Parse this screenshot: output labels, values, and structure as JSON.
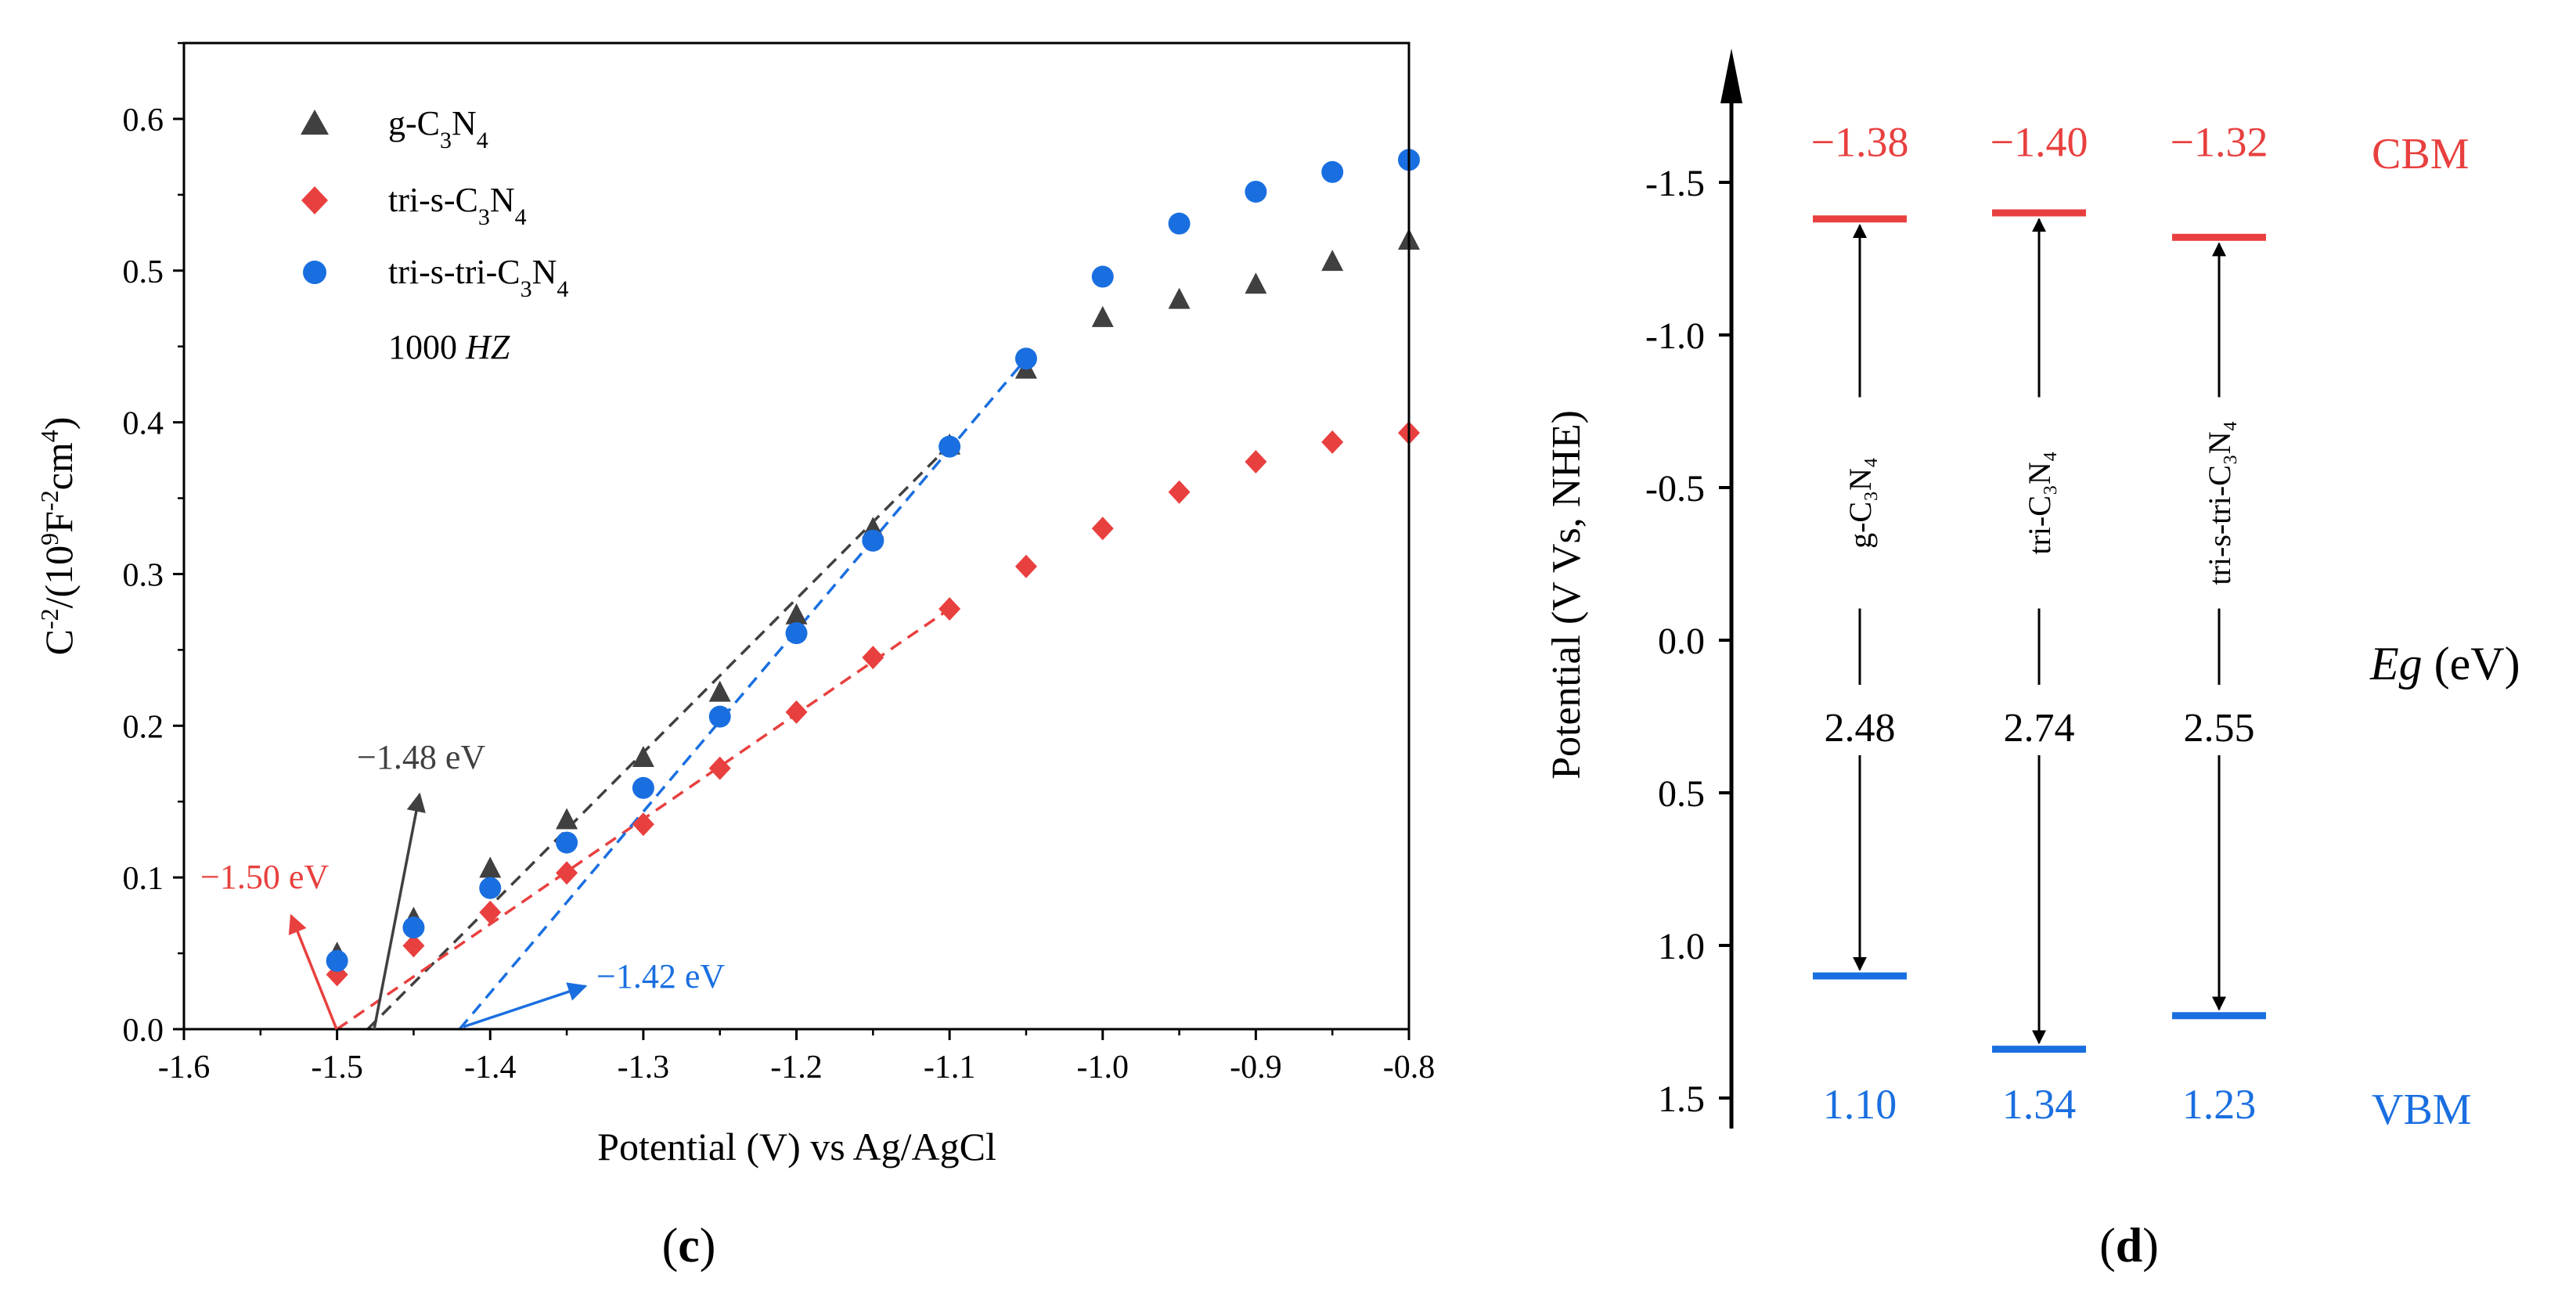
{
  "colors": {
    "gc3n4": "#404040",
    "tri_s": "#e8403f",
    "tri_s_tri": "#1a6fe0",
    "axis": "#000000",
    "cbm": "#e8403f",
    "vbm": "#1a6fe0"
  },
  "panel_c": {
    "caption": "(c)",
    "xlabel": "Potential (V) vs Ag/AgCl",
    "ylabel": "C⁻²/(10⁹F⁻²cm⁴)",
    "legend_title_extra": "1000 HZ",
    "legend": [
      {
        "label": "g-C₃N₄",
        "marker": "triangle",
        "color_key": "gc3n4"
      },
      {
        "label": "tri-s-C₃N₄",
        "marker": "diamond",
        "color_key": "tri_s"
      },
      {
        "label": "tri-s-tri-C₃N₄",
        "marker": "circle",
        "color_key": "tri_s_tri"
      }
    ],
    "annotations": [
      {
        "text": "−1.48 eV",
        "color_key": "gc3n4"
      },
      {
        "text": "−1.50 eV",
        "color_key": "tri_s"
      },
      {
        "text": "−1.42 eV",
        "color_key": "tri_s_tri"
      }
    ]
  },
  "panel_d": {
    "caption": "(d)",
    "ylabel": "Potential (V Vs, NHE)",
    "eg_label": "Eg",
    "eg_unit": " (eV)",
    "cbm_label": "CBM",
    "vbm_label": "VBM",
    "columns": [
      {
        "name": "g-C₃N₄",
        "cbm": "−1.38",
        "vbm": "1.10",
        "gap": "2.48"
      },
      {
        "name": "tri-C₃N₄",
        "cbm": "−1.40",
        "vbm": "1.34",
        "gap": "2.74"
      },
      {
        "name": "tri-s-tri-C₃N₄",
        "cbm": "−1.32",
        "vbm": "1.23",
        "gap": "2.55"
      }
    ]
  },
  "chart_data": [
    {
      "type": "scatter",
      "xlabel": "Potential (V) vs Ag/AgCl",
      "ylabel": "C⁻²/(10⁹F⁻²cm⁴)",
      "xlim": [
        -1.6,
        -0.8
      ],
      "ylim": [
        0,
        0.65
      ],
      "xticks": [
        -1.6,
        -1.5,
        -1.4,
        -1.3,
        -1.2,
        -1.1,
        -1.0,
        -0.9,
        -0.8
      ],
      "yticks": [
        0.0,
        0.1,
        0.2,
        0.3,
        0.4,
        0.5,
        0.6
      ],
      "grid": false,
      "legend_position": "top-left",
      "x": [
        -1.5,
        -1.45,
        -1.4,
        -1.35,
        -1.3,
        -1.25,
        -1.2,
        -1.15,
        -1.1,
        -1.05,
        -1.0,
        -0.95,
        -0.9,
        -0.85,
        -0.8
      ],
      "series": [
        {
          "name": "g-C₃N₄",
          "values": [
            0.05,
            0.073,
            0.106,
            0.138,
            0.179,
            0.222,
            0.273,
            0.33,
            0.385,
            0.435,
            0.469,
            0.481,
            0.491,
            0.506,
            0.52
          ]
        },
        {
          "name": "tri-s-C₃N₄",
          "values": [
            0.036,
            0.055,
            0.077,
            0.103,
            0.135,
            0.172,
            0.209,
            0.245,
            0.277,
            0.305,
            0.33,
            0.354,
            0.374,
            0.387,
            0.393
          ]
        },
        {
          "name": "tri-s-tri-C₃N₄",
          "values": [
            0.045,
            0.067,
            0.093,
            0.123,
            0.159,
            0.206,
            0.261,
            0.322,
            0.384,
            0.442,
            0.496,
            0.531,
            0.552,
            0.565,
            0.573
          ]
        }
      ],
      "fit_lines": [
        {
          "series": "g-C₃N₄",
          "x": [
            -1.48,
            -1.1
          ],
          "y": [
            0,
            0.385
          ]
        },
        {
          "series": "tri-s-C₃N₄",
          "x": [
            -1.5,
            -1.1
          ],
          "y": [
            0,
            0.277
          ]
        },
        {
          "series": "tri-s-tri-C₃N₄",
          "x": [
            -1.42,
            -1.05
          ],
          "y": [
            0,
            0.442
          ]
        }
      ]
    },
    {
      "type": "bar",
      "ylabel": "Potential (V Vs, NHE)",
      "ylim": [
        1.5,
        -1.8
      ],
      "yticks": [
        -1.5,
        -1.0,
        -0.5,
        0.0,
        0.5,
        1.0,
        1.5
      ],
      "categories": [
        "g-C₃N₄",
        "tri-C₃N₄",
        "tri-s-tri-C₃N₄"
      ],
      "series": [
        {
          "name": "CBM",
          "values": [
            -1.38,
            -1.4,
            -1.32
          ]
        },
        {
          "name": "VBM",
          "values": [
            1.1,
            1.34,
            1.23
          ]
        },
        {
          "name": "Eg (eV)",
          "values": [
            2.48,
            2.74,
            2.55
          ]
        }
      ]
    }
  ]
}
